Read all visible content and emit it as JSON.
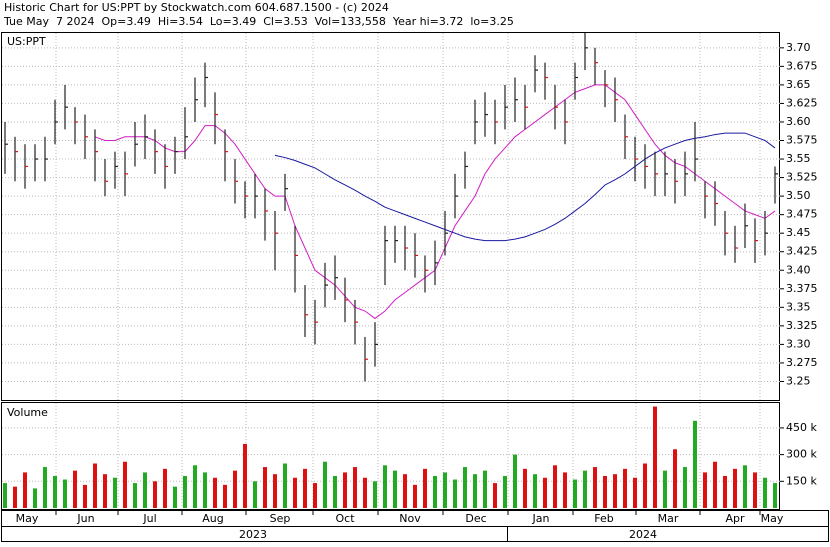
{
  "chart_data": {
    "type": "ohlc",
    "title": "Historic Chart for US:PPT by Stockwatch.com 604.687.1500 - (c) 2024",
    "subtitle": "Tue May  7 2024  Op=3.49  Hi=3.54  Lo=3.49  Cl=3.53  Vol=133,558  Year hi=3.72  lo=3.25",
    "price_label": "US:PPT",
    "volume_label": "Volume",
    "months": [
      "May",
      "Jun",
      "Jul",
      "Aug",
      "Sep",
      "Oct",
      "Nov",
      "Dec",
      "Jan",
      "Feb",
      "Mar",
      "Apr",
      "May"
    ],
    "years": [
      "2023",
      "2024"
    ],
    "bar_color": "#222222",
    "up_color": "#22aa22",
    "down_color": "#dd1111",
    "close": [
      3.57,
      3.56,
      3.54,
      3.55,
      3.55,
      3.6,
      3.62,
      3.6,
      3.58,
      3.56,
      3.52,
      3.54,
      3.53,
      3.57,
      3.58,
      3.56,
      3.54,
      3.56,
      3.58,
      3.63,
      3.66,
      3.61,
      3.56,
      3.52,
      3.5,
      3.5,
      3.48,
      3.45,
      3.51,
      3.42,
      3.34,
      3.33,
      3.38,
      3.39,
      3.36,
      3.33,
      3.28,
      3.3,
      3.44,
      3.44,
      3.43,
      3.42,
      3.4,
      3.41,
      3.45,
      3.5,
      3.54,
      3.6,
      3.61,
      3.6,
      3.62,
      3.63,
      3.62,
      3.67,
      3.66,
      3.62,
      3.6,
      3.66,
      3.7,
      3.68,
      3.65,
      3.63,
      3.58,
      3.55,
      3.54,
      3.53,
      3.53,
      3.52,
      3.53,
      3.55,
      3.5,
      3.49,
      3.45,
      3.43,
      3.46,
      3.44,
      3.45,
      3.53
    ],
    "high": [
      3.6,
      3.58,
      3.57,
      3.57,
      3.58,
      3.63,
      3.65,
      3.62,
      3.61,
      3.59,
      3.55,
      3.56,
      3.56,
      3.6,
      3.61,
      3.59,
      3.57,
      3.58,
      3.62,
      3.66,
      3.68,
      3.64,
      3.59,
      3.55,
      3.52,
      3.53,
      3.51,
      3.48,
      3.53,
      3.46,
      3.38,
      3.36,
      3.41,
      3.42,
      3.39,
      3.36,
      3.31,
      3.33,
      3.46,
      3.46,
      3.46,
      3.45,
      3.42,
      3.44,
      3.48,
      3.53,
      3.56,
      3.63,
      3.64,
      3.63,
      3.65,
      3.66,
      3.65,
      3.69,
      3.68,
      3.65,
      3.63,
      3.68,
      3.72,
      3.7,
      3.67,
      3.66,
      3.61,
      3.58,
      3.57,
      3.56,
      3.56,
      3.55,
      3.56,
      3.6,
      3.52,
      3.52,
      3.48,
      3.46,
      3.49,
      3.47,
      3.48,
      3.54
    ],
    "low": [
      3.53,
      3.52,
      3.51,
      3.52,
      3.52,
      3.57,
      3.59,
      3.57,
      3.55,
      3.52,
      3.5,
      3.51,
      3.5,
      3.54,
      3.55,
      3.53,
      3.51,
      3.53,
      3.55,
      3.6,
      3.62,
      3.57,
      3.52,
      3.49,
      3.47,
      3.47,
      3.44,
      3.4,
      3.48,
      3.37,
      3.31,
      3.3,
      3.35,
      3.36,
      3.33,
      3.3,
      3.25,
      3.27,
      3.38,
      3.41,
      3.4,
      3.39,
      3.37,
      3.38,
      3.42,
      3.47,
      3.51,
      3.57,
      3.58,
      3.57,
      3.59,
      3.6,
      3.59,
      3.64,
      3.63,
      3.59,
      3.57,
      3.63,
      3.67,
      3.65,
      3.62,
      3.6,
      3.55,
      3.52,
      3.51,
      3.5,
      3.5,
      3.49,
      3.5,
      3.52,
      3.47,
      3.46,
      3.42,
      3.41,
      3.43,
      3.41,
      3.42,
      3.49
    ],
    "volume": [
      140000,
      120000,
      200000,
      110000,
      230000,
      180000,
      160000,
      210000,
      130000,
      250000,
      190000,
      170000,
      260000,
      140000,
      200000,
      150000,
      220000,
      120000,
      180000,
      240000,
      200000,
      170000,
      130000,
      210000,
      360000,
      150000,
      230000,
      190000,
      250000,
      170000,
      220000,
      140000,
      260000,
      180000,
      200000,
      230000,
      170000,
      150000,
      240000,
      210000,
      190000,
      130000,
      220000,
      180000,
      200000,
      160000,
      230000,
      190000,
      210000,
      140000,
      180000,
      300000,
      220000,
      190000,
      170000,
      240000,
      200000,
      160000,
      210000,
      230000,
      180000,
      190000,
      220000,
      170000,
      250000,
      570000,
      210000,
      330000,
      230000,
      490000,
      200000,
      260000,
      180000,
      220000,
      240000,
      200000,
      170000,
      140000
    ],
    "ma": [
      {
        "color": "#d01fc4",
        "values": [
          null,
          null,
          null,
          null,
          null,
          null,
          null,
          null,
          null,
          3.58,
          3.575,
          3.575,
          3.58,
          3.58,
          3.58,
          3.575,
          3.565,
          3.56,
          3.56,
          3.575,
          3.595,
          3.595,
          3.585,
          3.57,
          3.55,
          3.53,
          3.51,
          3.5,
          3.5,
          3.46,
          3.43,
          3.4,
          3.39,
          3.38,
          3.365,
          3.35,
          3.345,
          3.335,
          3.345,
          3.36,
          3.37,
          3.38,
          3.39,
          3.4,
          3.43,
          3.46,
          3.48,
          3.5,
          3.53,
          3.55,
          3.565,
          3.58,
          3.59,
          3.6,
          3.61,
          3.62,
          3.63,
          3.64,
          3.645,
          3.65,
          3.65,
          3.64,
          3.63,
          3.61,
          3.59,
          3.57,
          3.555,
          3.545,
          3.54,
          3.53,
          3.52,
          3.51,
          3.5,
          3.49,
          3.48,
          3.475,
          3.47,
          3.48
        ]
      },
      {
        "color": "#1a1aa0",
        "values": [
          null,
          null,
          null,
          null,
          null,
          null,
          null,
          null,
          null,
          null,
          null,
          null,
          null,
          null,
          null,
          null,
          null,
          null,
          null,
          null,
          null,
          null,
          null,
          null,
          null,
          null,
          null,
          3.555,
          3.552,
          3.548,
          3.543,
          3.538,
          3.53,
          3.522,
          3.515,
          3.508,
          3.5,
          3.493,
          3.485,
          3.48,
          3.475,
          3.47,
          3.465,
          3.46,
          3.455,
          3.45,
          3.445,
          3.442,
          3.44,
          3.44,
          3.44,
          3.442,
          3.445,
          3.45,
          3.455,
          3.462,
          3.47,
          3.48,
          3.49,
          3.502,
          3.515,
          3.522,
          3.53,
          3.54,
          3.55,
          3.558,
          3.565,
          3.57,
          3.575,
          3.578,
          3.58,
          3.583,
          3.585,
          3.585,
          3.585,
          3.58,
          3.575,
          3.565
        ]
      }
    ],
    "ylim": [
      3.225,
      3.72
    ],
    "yticks": [
      3.25,
      3.275,
      {
        "value": 3.3,
        "label": "3.30"
      },
      3.325,
      3.35,
      3.375,
      {
        "value": 3.4,
        "label": "3.40"
      },
      3.425,
      3.45,
      3.475,
      {
        "value": 3.5,
        "label": "3.50"
      },
      3.525,
      3.55,
      3.575,
      {
        "value": 3.6,
        "label": "3.60"
      },
      3.625,
      3.65,
      3.675,
      {
        "value": 3.7,
        "label": "3.70"
      }
    ],
    "vlim": [
      0,
      590000
    ],
    "vticks": [
      {
        "value": 150000,
        "label": "150 k"
      },
      {
        "value": 300000,
        "label": "300 k"
      },
      {
        "value": 450000,
        "label": "450 k"
      }
    ],
    "grid": true
  }
}
